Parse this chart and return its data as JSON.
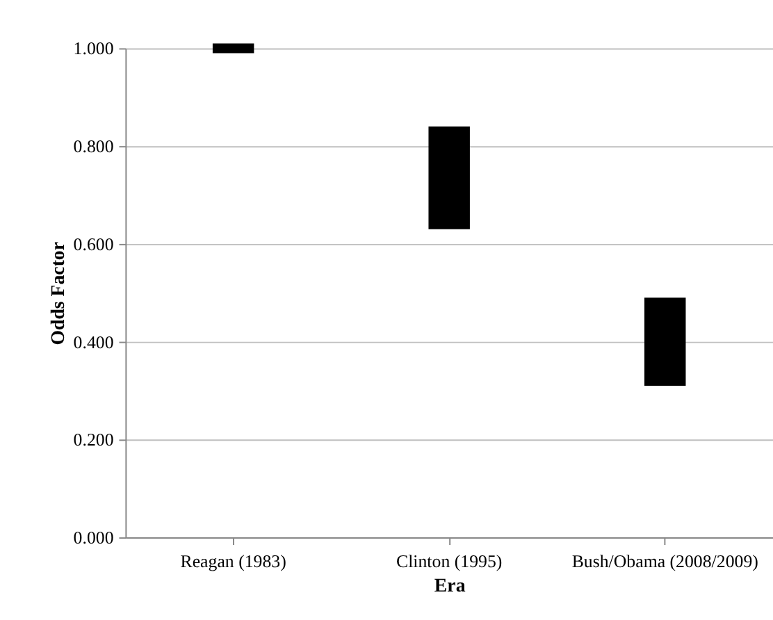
{
  "chart_data": {
    "type": "bar",
    "xlabel": "Era",
    "ylabel": "Odds Factor",
    "categories": [
      "Reagan (1983)",
      "Clinton (1995)",
      "Bush/Obama (2008/2009)"
    ],
    "base": [
      0.99,
      0.63,
      0.31
    ],
    "values": [
      0.02,
      0.21,
      0.18
    ],
    "color": "#000000",
    "ylim": [
      0,
      1
    ],
    "yticks": [
      {
        "value": 0,
        "label": "0.000"
      },
      {
        "value": 0.2,
        "label": "0.200"
      },
      {
        "value": 0.4,
        "label": "0.400"
      },
      {
        "value": 0.6,
        "label": "0.600"
      },
      {
        "value": 0.8,
        "label": "0.800"
      },
      {
        "value": 1,
        "label": "1.000"
      }
    ],
    "grid": "y"
  }
}
